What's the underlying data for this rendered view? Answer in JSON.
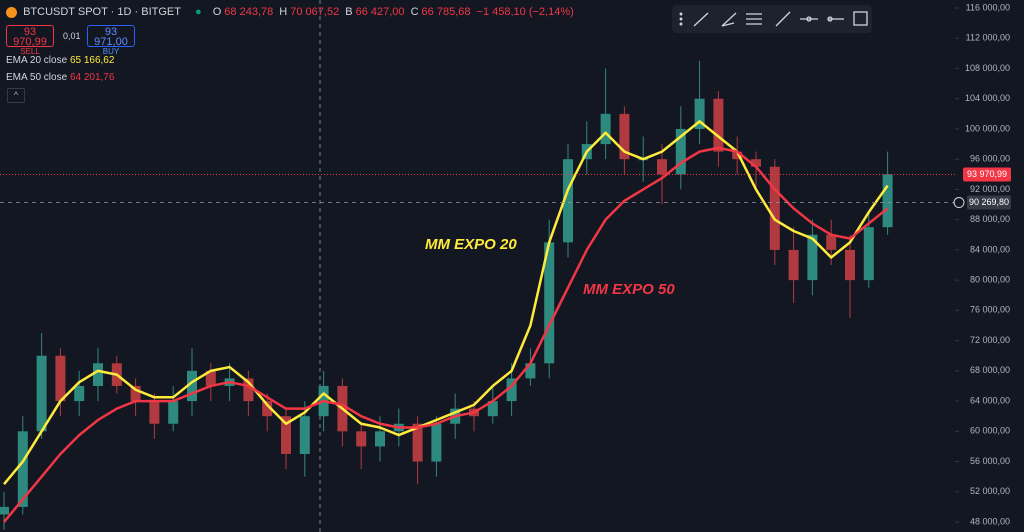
{
  "header": {
    "symbol": "BTCUSDT SPOT · 1D · BITGET",
    "ohlc": [
      {
        "key": "O",
        "value": "68 243,78"
      },
      {
        "key": "H",
        "value": "70 067,52"
      },
      {
        "key": "B",
        "value": "66 427,00"
      },
      {
        "key": "C",
        "value": "66 785,68"
      }
    ],
    "change": "−1 458,10 (−2,14%)"
  },
  "trade": {
    "sell_price": "93 970,99",
    "sell": "SELL",
    "spread": "0,01",
    "buy_price": "93 971,00",
    "buy": "BUY"
  },
  "indicators": [
    {
      "name": "EMA 20 close",
      "value": "65 166,62"
    },
    {
      "name": "EMA 50 close",
      "value": "64 201,76"
    }
  ],
  "chart_data": {
    "type": "candlestick",
    "up_color": "#2e8a7e",
    "down_color": "#b03a3f",
    "open": [
      49000,
      50000,
      60000,
      70000,
      64000,
      66000,
      69000,
      66000,
      64000,
      61000,
      64000,
      68000,
      66000,
      67000,
      64000,
      62000,
      57000,
      62000,
      66000,
      60000,
      58000,
      60000,
      61000,
      56000,
      61000,
      63000,
      62000,
      64000,
      67000,
      69000,
      85000,
      96000,
      98000,
      102000,
      96000,
      96000,
      94000,
      100000,
      104000,
      97000,
      96000,
      95000,
      84000,
      80000,
      86000,
      84000,
      80000,
      87000
    ],
    "high": [
      52000,
      62000,
      73000,
      71000,
      68000,
      71000,
      70000,
      67000,
      65000,
      66000,
      71000,
      69000,
      69000,
      68000,
      65000,
      63000,
      64000,
      68000,
      67000,
      61000,
      62000,
      63000,
      62000,
      62000,
      65000,
      64000,
      66000,
      69000,
      71000,
      88000,
      98000,
      101000,
      108000,
      103000,
      99000,
      98000,
      103000,
      109000,
      105000,
      99000,
      97000,
      96000,
      87000,
      88000,
      88000,
      86000,
      89000,
      97000
    ],
    "low": [
      47000,
      49000,
      59000,
      62000,
      62000,
      64000,
      65000,
      62000,
      59000,
      60000,
      62000,
      64000,
      64000,
      62000,
      60000,
      55000,
      54000,
      60000,
      58000,
      55000,
      56000,
      58000,
      53000,
      54000,
      59000,
      60000,
      61000,
      62000,
      66000,
      67000,
      83000,
      94000,
      96000,
      94000,
      93000,
      90000,
      92000,
      98000,
      95000,
      94000,
      92000,
      82000,
      77000,
      78000,
      82000,
      75000,
      79000,
      86000
    ],
    "close": [
      50000,
      60000,
      70000,
      64000,
      66000,
      69000,
      66000,
      64000,
      61000,
      64000,
      68000,
      66000,
      67000,
      64000,
      62000,
      57000,
      62000,
      66000,
      60000,
      58000,
      60000,
      61000,
      56000,
      61000,
      63000,
      62000,
      64000,
      67000,
      69000,
      85000,
      96000,
      98000,
      102000,
      96000,
      96000,
      94000,
      100000,
      104000,
      97000,
      96000,
      95000,
      84000,
      80000,
      86000,
      84000,
      80000,
      87000,
      94000
    ],
    "series": [
      {
        "color": "#ffeb3b",
        "values": [
          53000,
          56000,
          60000,
          64000,
          66500,
          68000,
          67500,
          65500,
          64500,
          64500,
          66500,
          68000,
          68500,
          66500,
          63500,
          61000,
          62500,
          65000,
          63000,
          61000,
          60500,
          59500,
          60500,
          61500,
          62500,
          63500,
          66000,
          68000,
          74000,
          85000,
          92000,
          97000,
          99500,
          97000,
          96000,
          97000,
          99000,
          101000,
          99000,
          97000,
          92000,
          88000,
          86500,
          85500,
          83000,
          85000,
          89000,
          92500
        ]
      },
      {
        "color": "#f23645",
        "values": [
          48000,
          51000,
          54000,
          57000,
          59500,
          61500,
          63000,
          64000,
          64000,
          64000,
          65000,
          66000,
          66500,
          66000,
          64500,
          63000,
          63000,
          64000,
          63500,
          62000,
          61000,
          60500,
          60500,
          61000,
          62000,
          62500,
          64000,
          66000,
          69000,
          74000,
          79000,
          84000,
          88000,
          90500,
          92000,
          93500,
          95500,
          97000,
          97500,
          97000,
          95000,
          92000,
          89500,
          87500,
          86000,
          85500,
          87500,
          89500
        ]
      }
    ],
    "annotations": [
      {
        "text": "MM EXPO 20",
        "color": "#ffeb3b"
      },
      {
        "text": "MM EXPO 50",
        "color": "#f23645"
      }
    ],
    "last_price": {
      "value": 93970.99,
      "label": "93 970,99"
    },
    "crosshair_price": {
      "value": 90269.8,
      "label": "90 269,80"
    },
    "ylim": [
      46680,
      117060
    ],
    "yticks": [
      {
        "value": 48000,
        "label": "48 000,00"
      },
      {
        "value": 52000,
        "label": "52 000,00"
      },
      {
        "value": 56000,
        "label": "56 000,00"
      },
      {
        "value": 60000,
        "label": "60 000,00"
      },
      {
        "value": 64000,
        "label": "64 000,00"
      },
      {
        "value": 68000,
        "label": "68 000,00"
      },
      {
        "value": 72000,
        "label": "72 000,00"
      },
      {
        "value": 76000,
        "label": "76 000,00"
      },
      {
        "value": 80000,
        "label": "80 000,00"
      },
      {
        "value": 84000,
        "label": "84 000,00"
      },
      {
        "value": 88000,
        "label": "88 000,00"
      },
      {
        "value": 92000,
        "label": "92 000,00"
      },
      {
        "value": 96000,
        "label": "96 000,00"
      },
      {
        "value": 100000,
        "label": "100 000,00"
      },
      {
        "value": 104000,
        "label": "104 000,00"
      },
      {
        "value": 108000,
        "label": "108 000,00"
      },
      {
        "value": 112000,
        "label": "112 000,00"
      },
      {
        "value": 116000,
        "label": "116 000,00"
      }
    ]
  }
}
